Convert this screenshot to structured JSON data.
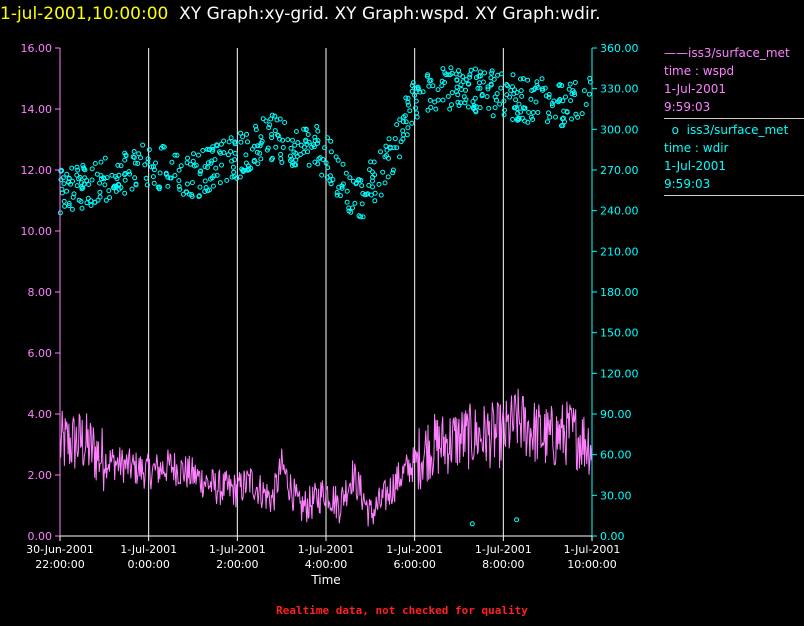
{
  "header": {
    "timestamp": "1-jul-2001,10:00:00",
    "graphs": "XY Graph:xy-grid.  XY Graph:wspd.  XY Graph:wdir."
  },
  "legend": [
    {
      "symbol": "——",
      "name": "iss3/surface_met",
      "var": "time : wspd",
      "date": "1-Jul-2001",
      "time": "9:59:03",
      "color": "#ff80ff"
    },
    {
      "symbol": "o",
      "name": "iss3/surface_met",
      "var": "time : wdir",
      "date": "1-Jul-2001",
      "time": "9:59:03",
      "color": "#00ffff"
    }
  ],
  "footer": "Realtime data, not checked for quality",
  "chart_data": {
    "type": "line",
    "xlabel": "Time",
    "x_ticks": [
      {
        "hours": 0,
        "line1": "30-Jun-2001",
        "line2": "22:00:00"
      },
      {
        "hours": 2,
        "line1": "1-Jul-2001",
        "line2": "0:00:00"
      },
      {
        "hours": 4,
        "line1": "1-Jul-2001",
        "line2": "2:00:00"
      },
      {
        "hours": 6,
        "line1": "1-Jul-2001",
        "line2": "4:00:00"
      },
      {
        "hours": 8,
        "line1": "1-Jul-2001",
        "line2": "6:00:00"
      },
      {
        "hours": 10,
        "line1": "1-Jul-2001",
        "line2": "8:00:00"
      },
      {
        "hours": 12,
        "line1": "1-Jul-2001",
        "line2": "10:00:00"
      }
    ],
    "xlim": [
      0,
      12
    ],
    "y_left": {
      "lim": [
        0,
        16
      ],
      "ticks": [
        "0.00",
        "2.00",
        "4.00",
        "6.00",
        "8.00",
        "10.00",
        "12.00",
        "14.00",
        "16.00"
      ],
      "color": "#ff80ff"
    },
    "y_right": {
      "lim": [
        0,
        360
      ],
      "ticks": [
        "0.00",
        "30.00",
        "60.00",
        "90.00",
        "120.00",
        "150.00",
        "180.00",
        "210.00",
        "240.00",
        "270.00",
        "300.00",
        "330.00",
        "360.00"
      ],
      "color": "#00ffff"
    },
    "grid": {
      "vertical": true,
      "horizontal": false
    },
    "series": [
      {
        "name": "time : wspd",
        "kind": "line",
        "axis": "left",
        "color": "#ff80ff",
        "anchors": [
          [
            0,
            3.0
          ],
          [
            0.5,
            3.1
          ],
          [
            1,
            2.5
          ],
          [
            1.5,
            2.3
          ],
          [
            2,
            2.1
          ],
          [
            2.5,
            2.3
          ],
          [
            3,
            2.0
          ],
          [
            3.5,
            1.6
          ],
          [
            4,
            1.5
          ],
          [
            4.3,
            1.8
          ],
          [
            4.6,
            1.4
          ],
          [
            4.8,
            1.2
          ],
          [
            5,
            2.3
          ],
          [
            5.2,
            1.6
          ],
          [
            5.4,
            0.9
          ],
          [
            5.7,
            1.1
          ],
          [
            6,
            1.5
          ],
          [
            6.3,
            1.0
          ],
          [
            6.6,
            2.0
          ],
          [
            6.8,
            1.4
          ],
          [
            7,
            0.7
          ],
          [
            7.3,
            1.2
          ],
          [
            7.7,
            2.0
          ],
          [
            8,
            2.4
          ],
          [
            8.3,
            2.9
          ],
          [
            8.6,
            3.0
          ],
          [
            9,
            3.2
          ],
          [
            9.5,
            3.3
          ],
          [
            10,
            3.3
          ],
          [
            10.3,
            3.8
          ],
          [
            10.6,
            3.5
          ],
          [
            11,
            3.2
          ],
          [
            11.5,
            3.4
          ],
          [
            12,
            3.0
          ]
        ]
      },
      {
        "name": "time : wdir",
        "kind": "scatter",
        "axis": "right",
        "color": "#00ffff",
        "anchors": [
          [
            0,
            255
          ],
          [
            0.5,
            258
          ],
          [
            1,
            262
          ],
          [
            1.5,
            270
          ],
          [
            2,
            275
          ],
          [
            2.5,
            268
          ],
          [
            3,
            265
          ],
          [
            3.5,
            272
          ],
          [
            4,
            280
          ],
          [
            4.2,
            285
          ],
          [
            4.5,
            290
          ],
          [
            4.8,
            295
          ],
          [
            5,
            292
          ],
          [
            5.3,
            285
          ],
          [
            5.6,
            290
          ],
          [
            5.9,
            283
          ],
          [
            6.1,
            275
          ],
          [
            6.3,
            265
          ],
          [
            6.5,
            252
          ],
          [
            6.7,
            245
          ],
          [
            7,
            260
          ],
          [
            7.3,
            270
          ],
          [
            7.6,
            290
          ],
          [
            8,
            325
          ],
          [
            8.5,
            328
          ],
          [
            9,
            330
          ],
          [
            9.5,
            328
          ],
          [
            10,
            325
          ],
          [
            10.5,
            322
          ],
          [
            11,
            320
          ],
          [
            11.5,
            318
          ],
          [
            12,
            322
          ]
        ],
        "outliers": [
          [
            9.3,
            9
          ],
          [
            10.3,
            12
          ]
        ]
      }
    ]
  }
}
